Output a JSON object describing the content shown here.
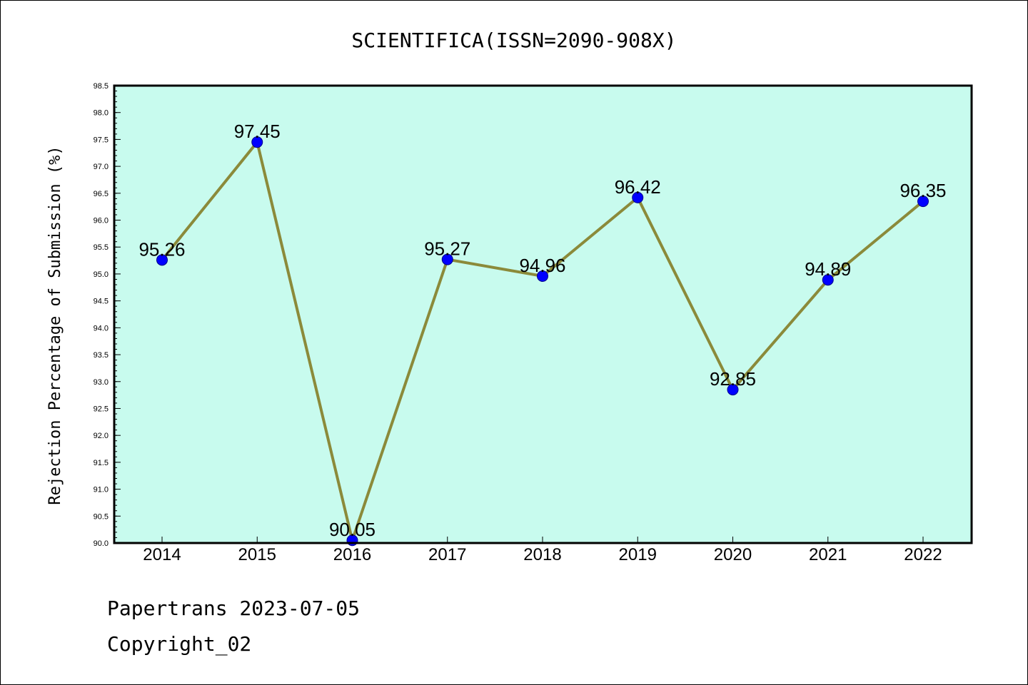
{
  "chart_data": {
    "type": "line",
    "title": "SCIENTIFICA(ISSN=2090-908X)",
    "xlabel": "",
    "ylabel": "Rejection Percentage of Submission (%)",
    "categories": [
      "2014",
      "2015",
      "2016",
      "2017",
      "2018",
      "2019",
      "2020",
      "2021",
      "2022"
    ],
    "values": [
      95.26,
      97.45,
      90.05,
      95.27,
      94.96,
      96.42,
      92.85,
      94.89,
      96.35
    ],
    "data_labels": [
      "95.26",
      "97.45",
      "90.05",
      "95.27",
      "94.96",
      "96.42",
      "92.85",
      "94.89",
      "96.35"
    ],
    "ylim": [
      90.0,
      98.5
    ],
    "yticks": [
      "90.0",
      "90.5",
      "91.0",
      "91.5",
      "92.0",
      "92.5",
      "93.0",
      "93.5",
      "94.0",
      "94.5",
      "95.0",
      "95.5",
      "96.0",
      "96.5",
      "97.0",
      "97.5",
      "98.0",
      "98.5"
    ],
    "grid": false,
    "colors": {
      "plot_background": "#c8fbee",
      "line": "#8b8a3a",
      "marker": "#0000ff"
    }
  },
  "footer": {
    "line1": "Papertrans 2023-07-05",
    "line2": "Copyright_02"
  }
}
